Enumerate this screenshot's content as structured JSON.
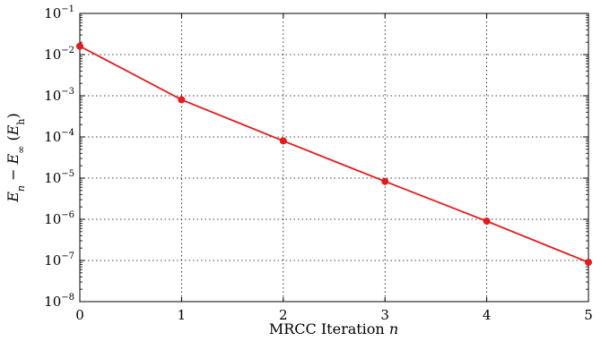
{
  "chart_data": {
    "type": "line",
    "xlabel": "MRCC Iteration n",
    "ylabel": "E_n − E_∞ (E_h)",
    "xlim": [
      0,
      5
    ],
    "ylim_exponent": [
      -8,
      -1
    ],
    "y_scale": "log",
    "grid": true,
    "x_ticks": [
      "0",
      "1",
      "2",
      "3",
      "4",
      "5"
    ],
    "y_tick_exponents": [
      "−8",
      "−7",
      "−6",
      "−5",
      "−4",
      "−3",
      "−2",
      "−1"
    ],
    "series": [
      {
        "color": "#e41a1c",
        "x": [
          0,
          1,
          2,
          3,
          4,
          5
        ],
        "y": [
          0.016,
          0.0008,
          8e-05,
          8.3e-06,
          9e-07,
          9e-08
        ]
      }
    ]
  }
}
